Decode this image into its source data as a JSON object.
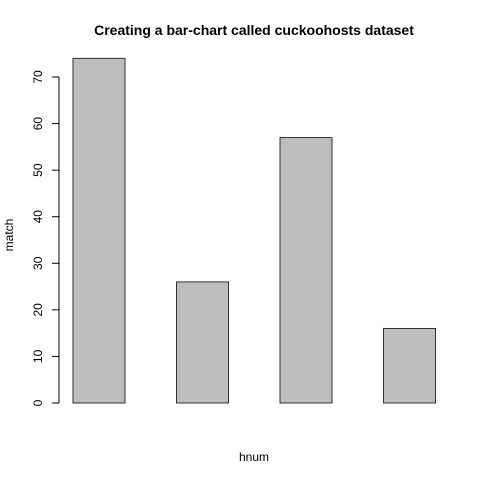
{
  "chart_data": {
    "type": "bar",
    "title": "Creating a bar-chart called cuckoohosts dataset",
    "xlabel": "hnum",
    "ylabel": "match",
    "values": [
      74,
      26,
      57,
      16
    ],
    "color": "#bebebe",
    "ylim": [
      0,
      70
    ],
    "yticks": [
      0,
      10,
      20,
      30,
      40,
      50,
      60,
      70
    ]
  }
}
